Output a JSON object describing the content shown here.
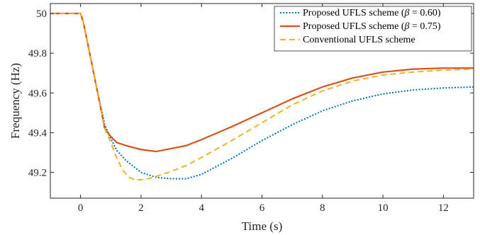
{
  "chart_data": {
    "type": "line",
    "xlabel": "Time (s)",
    "ylabel": "Frequency (Hz)",
    "xlim": [
      -1,
      13
    ],
    "ylim": [
      49.07,
      50.05
    ],
    "xticks": [
      0,
      2,
      4,
      6,
      8,
      10,
      12
    ],
    "yticks": [
      49.2,
      49.4,
      49.6,
      49.8,
      50
    ],
    "ytick_labels": [
      "49.2",
      "49.4",
      "49.6",
      "49.8",
      "50"
    ],
    "grid": false,
    "legend_position": "top-right",
    "series": [
      {
        "name": "Proposed UFLS scheme (β = 0.60)",
        "legend_prefix": "Proposed UFLS scheme (",
        "legend_symbol": "β",
        "legend_suffix": " = 0.60)",
        "color": "#0072BD",
        "dash": "dotted",
        "x": [
          -1,
          0,
          0.1,
          0.5,
          0.8,
          1.0,
          1.2,
          1.5,
          2.0,
          2.5,
          3.0,
          3.5,
          4.0,
          5.0,
          6.0,
          7.0,
          8.0,
          9.0,
          10.0,
          11.0,
          12.0,
          13.0
        ],
        "y": [
          50.0,
          50.0,
          49.95,
          49.65,
          49.44,
          49.37,
          49.31,
          49.26,
          49.2,
          49.175,
          49.168,
          49.168,
          49.19,
          49.27,
          49.36,
          49.44,
          49.51,
          49.56,
          49.595,
          49.615,
          49.625,
          49.63
        ]
      },
      {
        "name": "Proposed UFLS scheme (β = 0.75)",
        "legend_prefix": "Proposed UFLS scheme (",
        "legend_symbol": "β",
        "legend_suffix": " = 0.75)",
        "color": "#D95319",
        "dash": "solid",
        "x": [
          -1,
          0,
          0.1,
          0.5,
          0.8,
          1.0,
          1.2,
          1.5,
          2.0,
          2.5,
          3.0,
          3.5,
          4.0,
          5.0,
          6.0,
          7.0,
          8.0,
          9.0,
          10.0,
          11.0,
          12.0,
          13.0
        ],
        "y": [
          50.0,
          50.0,
          49.95,
          49.65,
          49.42,
          49.38,
          49.35,
          49.335,
          49.315,
          49.305,
          49.32,
          49.335,
          49.365,
          49.43,
          49.5,
          49.57,
          49.63,
          49.675,
          49.705,
          49.72,
          49.725,
          49.725
        ]
      },
      {
        "name": "Conventional UFLS scheme",
        "legend_prefix": "Conventional UFLS scheme",
        "legend_symbol": "",
        "legend_suffix": "",
        "color": "#EDB120",
        "dash": "dashed",
        "x": [
          -1,
          0,
          0.1,
          0.5,
          0.8,
          1.0,
          1.2,
          1.4,
          1.6,
          1.8,
          2.0,
          2.3,
          2.6,
          3.0,
          3.5,
          4.0,
          5.0,
          6.0,
          7.0,
          8.0,
          9.0,
          10.0,
          11.0,
          12.0,
          13.0
        ],
        "y": [
          50.0,
          50.0,
          49.95,
          49.65,
          49.42,
          49.35,
          49.27,
          49.21,
          49.175,
          49.163,
          49.163,
          49.17,
          49.185,
          49.205,
          49.235,
          49.275,
          49.36,
          49.45,
          49.54,
          49.61,
          49.66,
          49.69,
          49.705,
          49.715,
          49.72
        ]
      }
    ]
  }
}
